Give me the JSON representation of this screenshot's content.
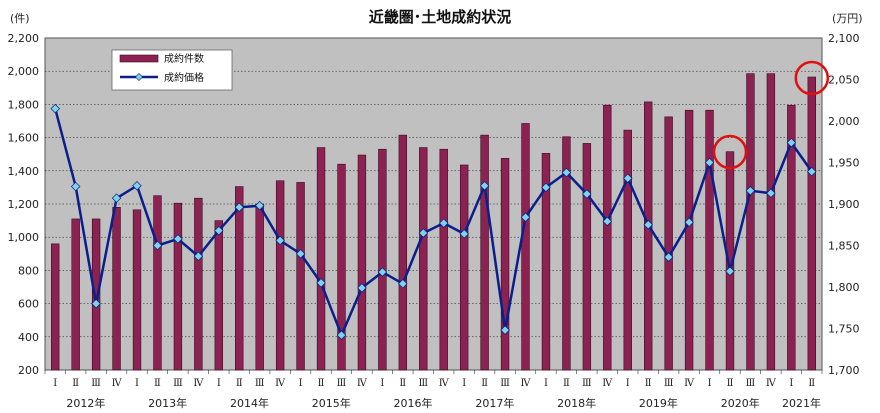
{
  "chart_data": {
    "type": "bar+line",
    "title": "近畿圏･土地成約状況",
    "y_left_unit": "(件)",
    "y_right_unit": "(万円)",
    "ylim_left": [
      200,
      2200
    ],
    "ylim_right": [
      1700,
      2100
    ],
    "y_left_ticks": [
      "200",
      "400",
      "600",
      "800",
      "1,000",
      "1,200",
      "1,400",
      "1,600",
      "1,800",
      "2,000",
      "2,200"
    ],
    "y_right_ticks": [
      "1,700",
      "1,750",
      "1,800",
      "1,850",
      "1,900",
      "1,950",
      "2,000",
      "2,050",
      "2,100"
    ],
    "quarters": [
      "Ⅰ",
      "Ⅱ",
      "Ⅲ",
      "Ⅳ",
      "Ⅰ",
      "Ⅱ",
      "Ⅲ",
      "Ⅳ",
      "Ⅰ",
      "Ⅱ",
      "Ⅲ",
      "Ⅳ",
      "Ⅰ",
      "Ⅱ",
      "Ⅲ",
      "Ⅳ",
      "Ⅰ",
      "Ⅱ",
      "Ⅲ",
      "Ⅳ",
      "Ⅰ",
      "Ⅱ",
      "Ⅲ",
      "Ⅳ",
      "Ⅰ",
      "Ⅱ",
      "Ⅲ",
      "Ⅳ",
      "Ⅰ",
      "Ⅱ",
      "Ⅲ",
      "Ⅳ",
      "Ⅰ",
      "Ⅱ",
      "Ⅲ",
      "Ⅳ",
      "Ⅰ",
      "Ⅱ"
    ],
    "years": [
      {
        "label": "2012年",
        "start": 0,
        "count": 4
      },
      {
        "label": "2013年",
        "start": 4,
        "count": 4
      },
      {
        "label": "2014年",
        "start": 8,
        "count": 4
      },
      {
        "label": "2015年",
        "start": 12,
        "count": 4
      },
      {
        "label": "2016年",
        "start": 16,
        "count": 4
      },
      {
        "label": "2017年",
        "start": 20,
        "count": 4
      },
      {
        "label": "2018年",
        "start": 24,
        "count": 4
      },
      {
        "label": "2019年",
        "start": 28,
        "count": 4
      },
      {
        "label": "2020年",
        "start": 32,
        "count": 4
      },
      {
        "label": "2021年",
        "start": 36,
        "count": 2
      }
    ],
    "series": [
      {
        "name": "成約件数",
        "kind": "bar",
        "axis": "left",
        "color": "#8b2252",
        "values": [
          960,
          1110,
          1110,
          1180,
          1165,
          1250,
          1205,
          1235,
          1100,
          1305,
          1200,
          1340,
          1330,
          1540,
          1440,
          1495,
          1530,
          1615,
          1540,
          1530,
          1435,
          1615,
          1475,
          1685,
          1505,
          1605,
          1565,
          1795,
          1645,
          1815,
          1725,
          1765,
          1765,
          1515,
          1985,
          1985,
          1795,
          1965
        ]
      },
      {
        "name": "成約価格",
        "kind": "line",
        "axis": "right",
        "color": "#0a1f8c",
        "marker_color": "#7fd3e8",
        "values": [
          2015,
          1921,
          1780,
          1907,
          1922,
          1850,
          1858,
          1837,
          1868,
          1896,
          1898,
          1856,
          1840,
          1805,
          1742,
          1799,
          1818,
          1804,
          1865,
          1877,
          1864,
          1922,
          1748,
          1884,
          1920,
          1938,
          1912,
          1879,
          1931,
          1875,
          1836,
          1878,
          1950,
          1819,
          1916,
          1913,
          1974,
          1939
        ]
      }
    ],
    "highlighted_quarters": [
      33,
      37
    ],
    "highlight_color": "#e01010",
    "plot_bg": "#c0c0c0",
    "grid": true,
    "legend_placement": "top-left"
  }
}
